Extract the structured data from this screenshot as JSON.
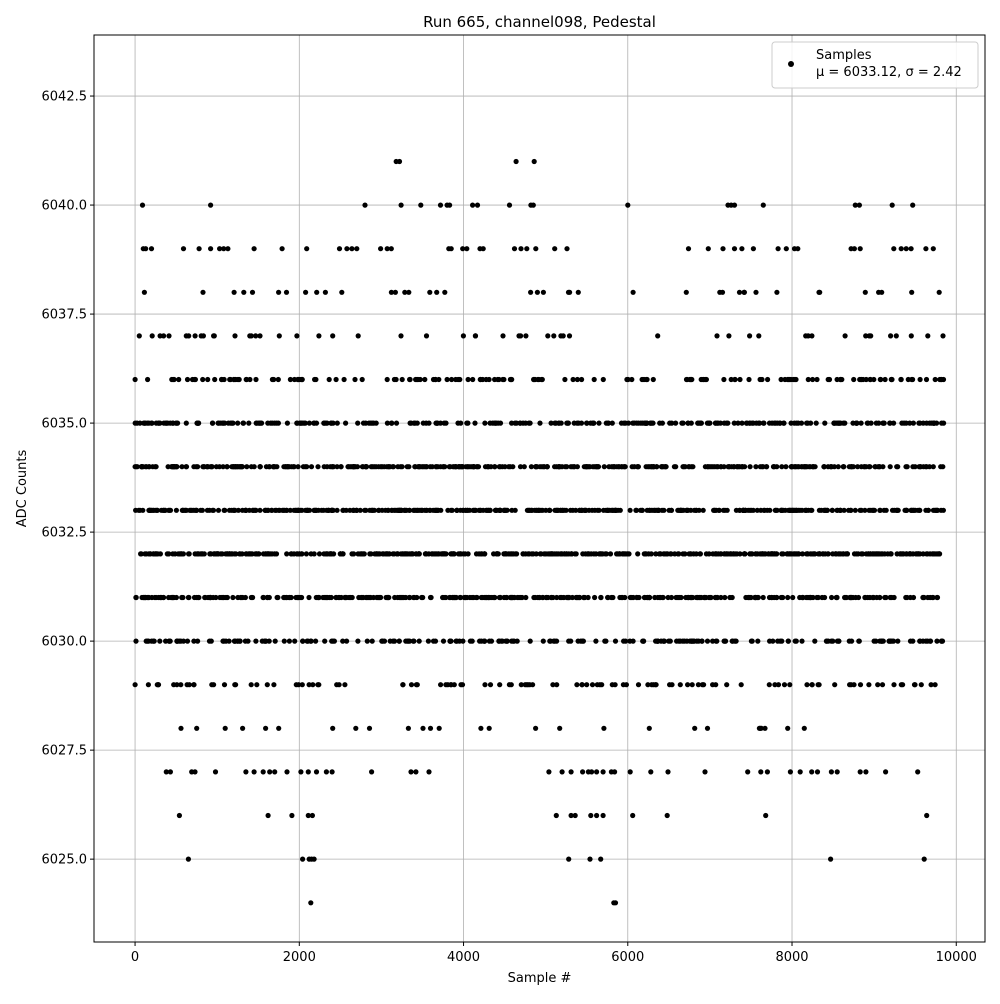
{
  "chart_data": {
    "type": "scatter",
    "title": "Run 665, channel098, Pedestal",
    "xlabel": "Sample #",
    "ylabel": "ADC Counts",
    "xlim": [
      -500,
      10350
    ],
    "ylim": [
      6023.1,
      6043.9
    ],
    "x_ticks": [
      0,
      2000,
      4000,
      6000,
      8000,
      10000
    ],
    "x_tick_labels": [
      "0",
      "2000",
      "4000",
      "6000",
      "8000",
      "10000"
    ],
    "y_ticks": [
      6025.0,
      6027.5,
      6030.0,
      6032.5,
      6035.0,
      6037.5,
      6040.0,
      6042.5
    ],
    "y_tick_labels": [
      "6025.0",
      "6027.5",
      "6030.0",
      "6032.5",
      "6035.0",
      "6037.5",
      "6040.0",
      "6042.5"
    ],
    "grid": true,
    "legend": {
      "placement": "top-right",
      "entries": [
        {
          "label": "Samples",
          "sublabel": "μ = 6033.12, σ = 2.42",
          "marker": "dot",
          "color": "#000000"
        }
      ]
    },
    "n_samples": 9850,
    "series": [
      {
        "name": "Samples",
        "color": "#000000",
        "levels": [
          {
            "y": 6024,
            "x": [
              2140,
              5830,
              5850
            ]
          },
          {
            "y": 6025,
            "x": [
              650,
              2040,
              2120,
              2150,
              2180,
              5280,
              5540,
              5670,
              8470,
              9610
            ]
          },
          {
            "y": 6026,
            "x": [
              540,
              1620,
              1910,
              2110,
              2160,
              5130,
              5310,
              5360,
              5550,
              5620,
              5700,
              6060,
              6480,
              7680,
              9640
            ]
          },
          {
            "y": 6027,
            "x": [
              380,
              430,
              690,
              730,
              980,
              1350,
              1450,
              1560,
              1640,
              1700,
              1850,
              2020,
              2110,
              2210,
              2330,
              2400,
              2880,
              3360,
              3420,
              3580,
              5040,
              5200,
              5310,
              5450,
              5520,
              5560,
              5620,
              5700,
              5800,
              5840,
              6030,
              6280,
              6490,
              6940,
              7460,
              7620,
              7700,
              7980,
              8100,
              8240,
              8310,
              8480,
              8550,
              8830,
              8900,
              9140,
              9530
            ]
          },
          {
            "y": 6028
          },
          {
            "y": 6029
          },
          {
            "y": 6030
          },
          {
            "y": 6031
          },
          {
            "y": 6032
          },
          {
            "y": 6033
          },
          {
            "y": 6034
          },
          {
            "y": 6035
          },
          {
            "y": 6036
          },
          {
            "y": 6037
          },
          {
            "y": 6038
          },
          {
            "y": 6039,
            "x": [
              100,
              130,
              200,
              590,
              780,
              920,
              1030,
              1080,
              1130,
              1450,
              1790,
              2090,
              2490,
              2580,
              2640,
              2700,
              2990,
              3070,
              3120,
              3820,
              3850,
              3990,
              4040,
              4200,
              4240,
              4620,
              4700,
              4770,
              4880,
              5110,
              5260,
              6740,
              6980,
              7160,
              7300,
              7390,
              7530,
              7830,
              7930,
              8030,
              8070,
              8720,
              8760,
              8830,
              9240,
              9330,
              9390,
              9450,
              9630,
              9720
            ]
          },
          {
            "y": 6040,
            "x": [
              90,
              920,
              2800,
              3240,
              3480,
              3720,
              3800,
              3830,
              4110,
              4170,
              4560,
              4820,
              4850,
              6000,
              7220,
              7260,
              7300,
              7650,
              8770,
              8820,
              9220,
              9470
            ]
          },
          {
            "y": 6041,
            "x": [
              3180,
              3220,
              4640,
              4860
            ]
          }
        ]
      }
    ]
  }
}
